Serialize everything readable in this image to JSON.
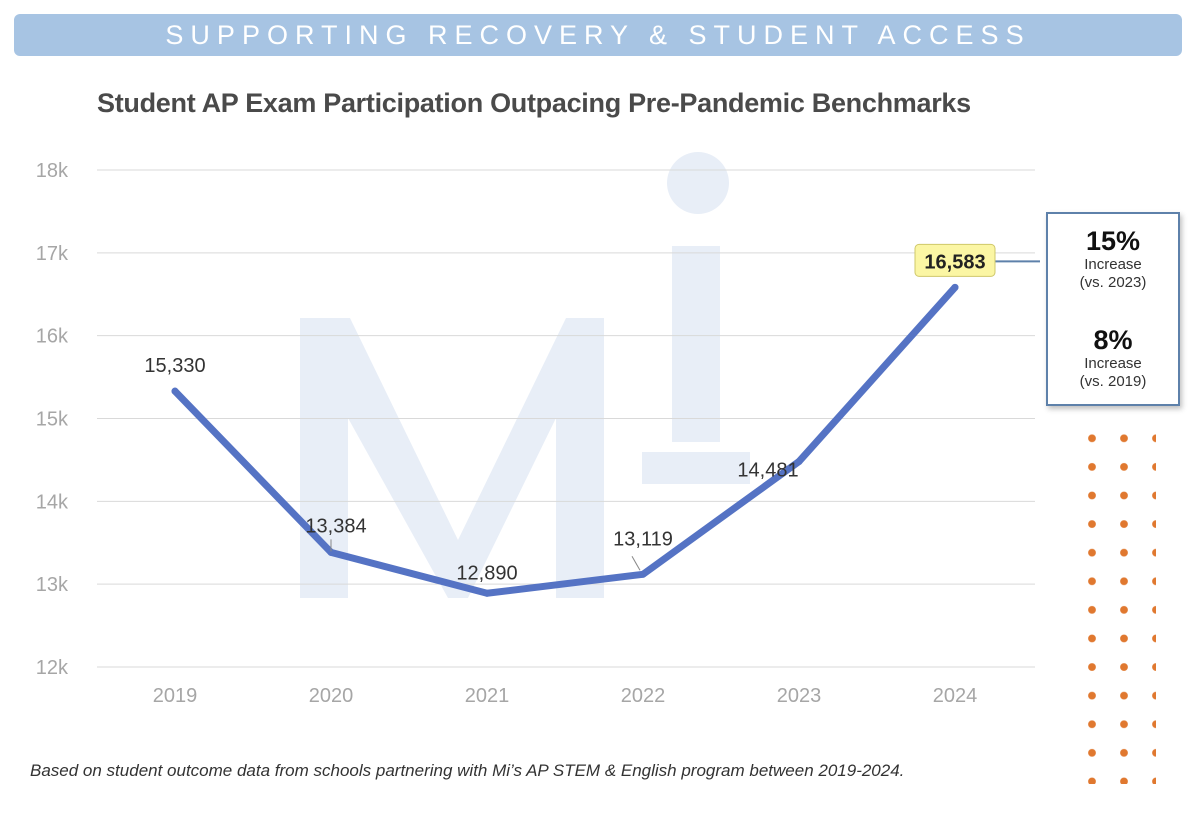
{
  "banner": "SUPPORTING RECOVERY & STUDENT ACCESS",
  "chart_data": {
    "type": "line",
    "title": "Student AP Exam Participation Outpacing Pre-Pandemic Benchmarks",
    "xlabel": "",
    "ylabel": "",
    "categories": [
      "2019",
      "2020",
      "2021",
      "2022",
      "2023",
      "2024"
    ],
    "values": [
      15330,
      13384,
      12890,
      13119,
      14481,
      16583
    ],
    "data_labels": [
      "15,330",
      "13,384",
      "12,890",
      "13,119",
      "14,481",
      "16,583"
    ],
    "ylim": [
      12000,
      18000
    ],
    "yticks": [
      12000,
      13000,
      14000,
      15000,
      16000,
      17000,
      18000
    ],
    "ytick_labels": [
      "12k",
      "13k",
      "14k",
      "15k",
      "16k",
      "17k",
      "18k"
    ],
    "grid": true,
    "highlight_label": "16,583",
    "colors": {
      "line": "#5573c4",
      "grid": "#d9d9d9",
      "tick_text": "#a6a6a6",
      "label_text": "#333333",
      "highlight_fill": "#fbf6a4",
      "watermark": "#e8eef7"
    }
  },
  "watermark": "Mi",
  "callout": {
    "stats": [
      {
        "value": "15%",
        "label": "Increase",
        "sub": "(vs. 2023)"
      },
      {
        "value": "8%",
        "label": "Increase",
        "sub": "(vs. 2019)"
      }
    ]
  },
  "footnote": "Based on student outcome data from schools partnering with Mi’s AP STEM & English program between 2019-2024."
}
